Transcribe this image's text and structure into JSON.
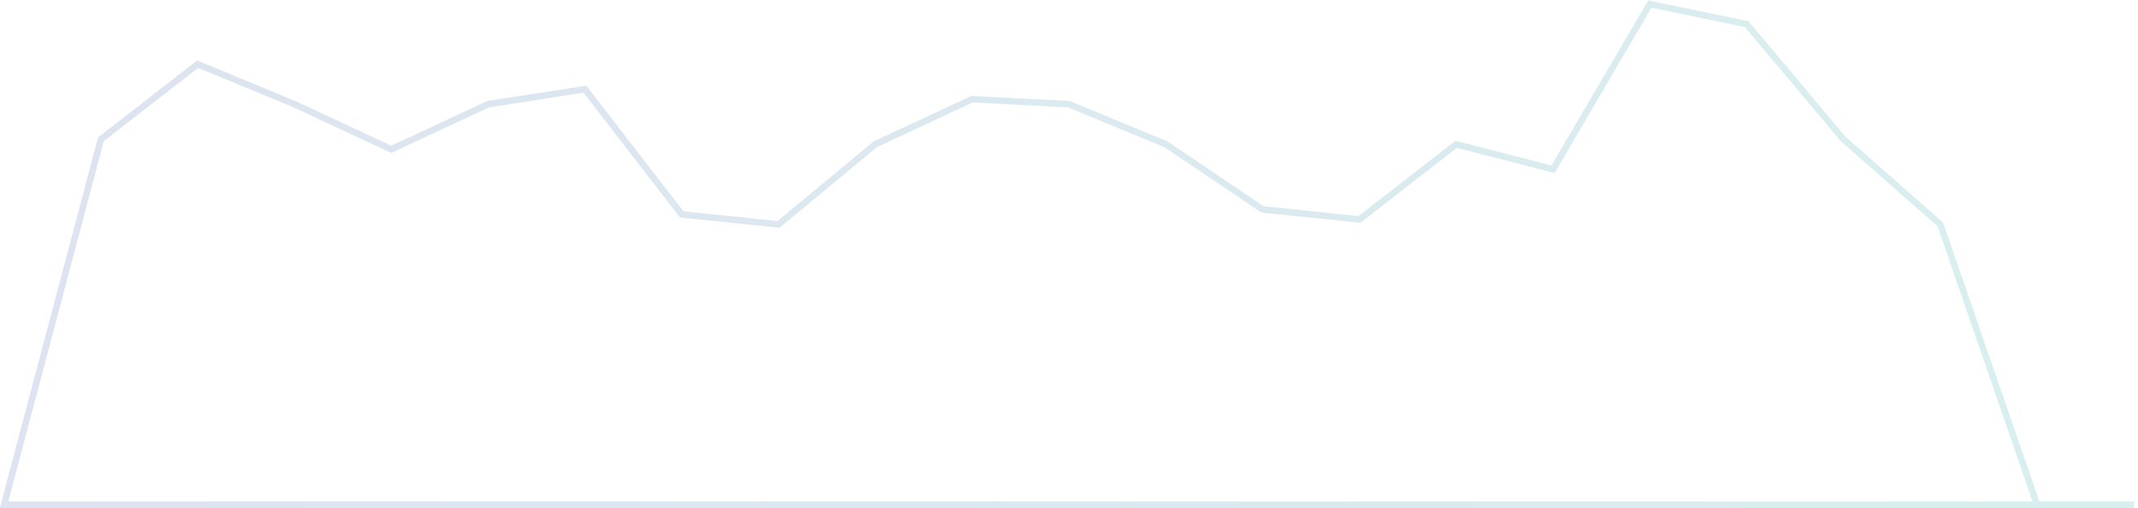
{
  "chart_data": {
    "type": "area",
    "title": "",
    "xlabel": "",
    "ylabel": "",
    "grid": false,
    "axes_visible": false,
    "x": [
      0,
      1,
      2,
      3,
      4,
      5,
      6,
      7,
      8,
      9,
      10,
      11,
      12,
      13,
      14,
      15,
      16,
      17,
      18,
      19,
      20,
      21,
      22
    ],
    "xlim": [
      0,
      22
    ],
    "ylim": [
      0,
      100
    ],
    "series": [
      {
        "values": [
          0,
          73,
          88,
          80,
          71,
          80,
          83,
          58,
          56,
          72,
          81,
          80,
          72,
          59,
          57,
          72,
          67,
          100,
          96,
          73,
          56,
          0,
          0
        ]
      }
    ],
    "colors": {
      "stroke_start": "#dde3f0",
      "stroke_end": "#d9efef",
      "fill": "#ffffff"
    }
  }
}
